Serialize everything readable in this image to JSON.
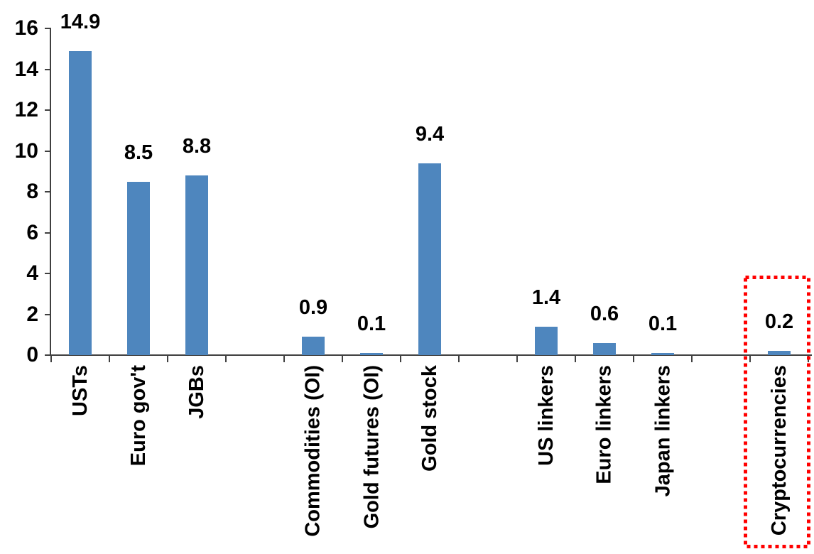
{
  "chart_data": {
    "type": "bar",
    "title": "",
    "xlabel": "",
    "ylabel": "",
    "categories": [
      "USTs",
      "Euro gov't",
      "JGBs",
      "Commodities (OI)",
      "Gold futures (OI)",
      "Gold stock",
      "US linkers",
      "Euro linkers",
      "Japan linkers",
      "Cryptocurrencies"
    ],
    "values": [
      14.9,
      8.5,
      8.8,
      0.9,
      0.1,
      9.4,
      1.4,
      0.6,
      0.1,
      0.2
    ],
    "groups": [
      [
        "USTs",
        "Euro gov't",
        "JGBs"
      ],
      [
        "Commodities (OI)",
        "Gold futures (OI)",
        "Gold stock"
      ],
      [
        "US linkers",
        "Euro linkers",
        "Japan linkers"
      ],
      [
        "Cryptocurrencies"
      ]
    ],
    "data_labels": [
      "14.9",
      "8.5",
      "8.8",
      "0.9",
      "0.1",
      "9.4",
      "1.4",
      "0.6",
      "0.1",
      "0.2"
    ],
    "ylim": [
      0,
      16
    ],
    "yticks": [
      0,
      2,
      4,
      6,
      8,
      10,
      12,
      14,
      16
    ],
    "grid": false,
    "legend": null,
    "bar_color": "#4E86BE",
    "axis_color": "#404040",
    "text_color": "#000000",
    "highlight": {
      "category": "Cryptocurrencies",
      "style": "dotted-box",
      "color": "#FF0000"
    }
  }
}
